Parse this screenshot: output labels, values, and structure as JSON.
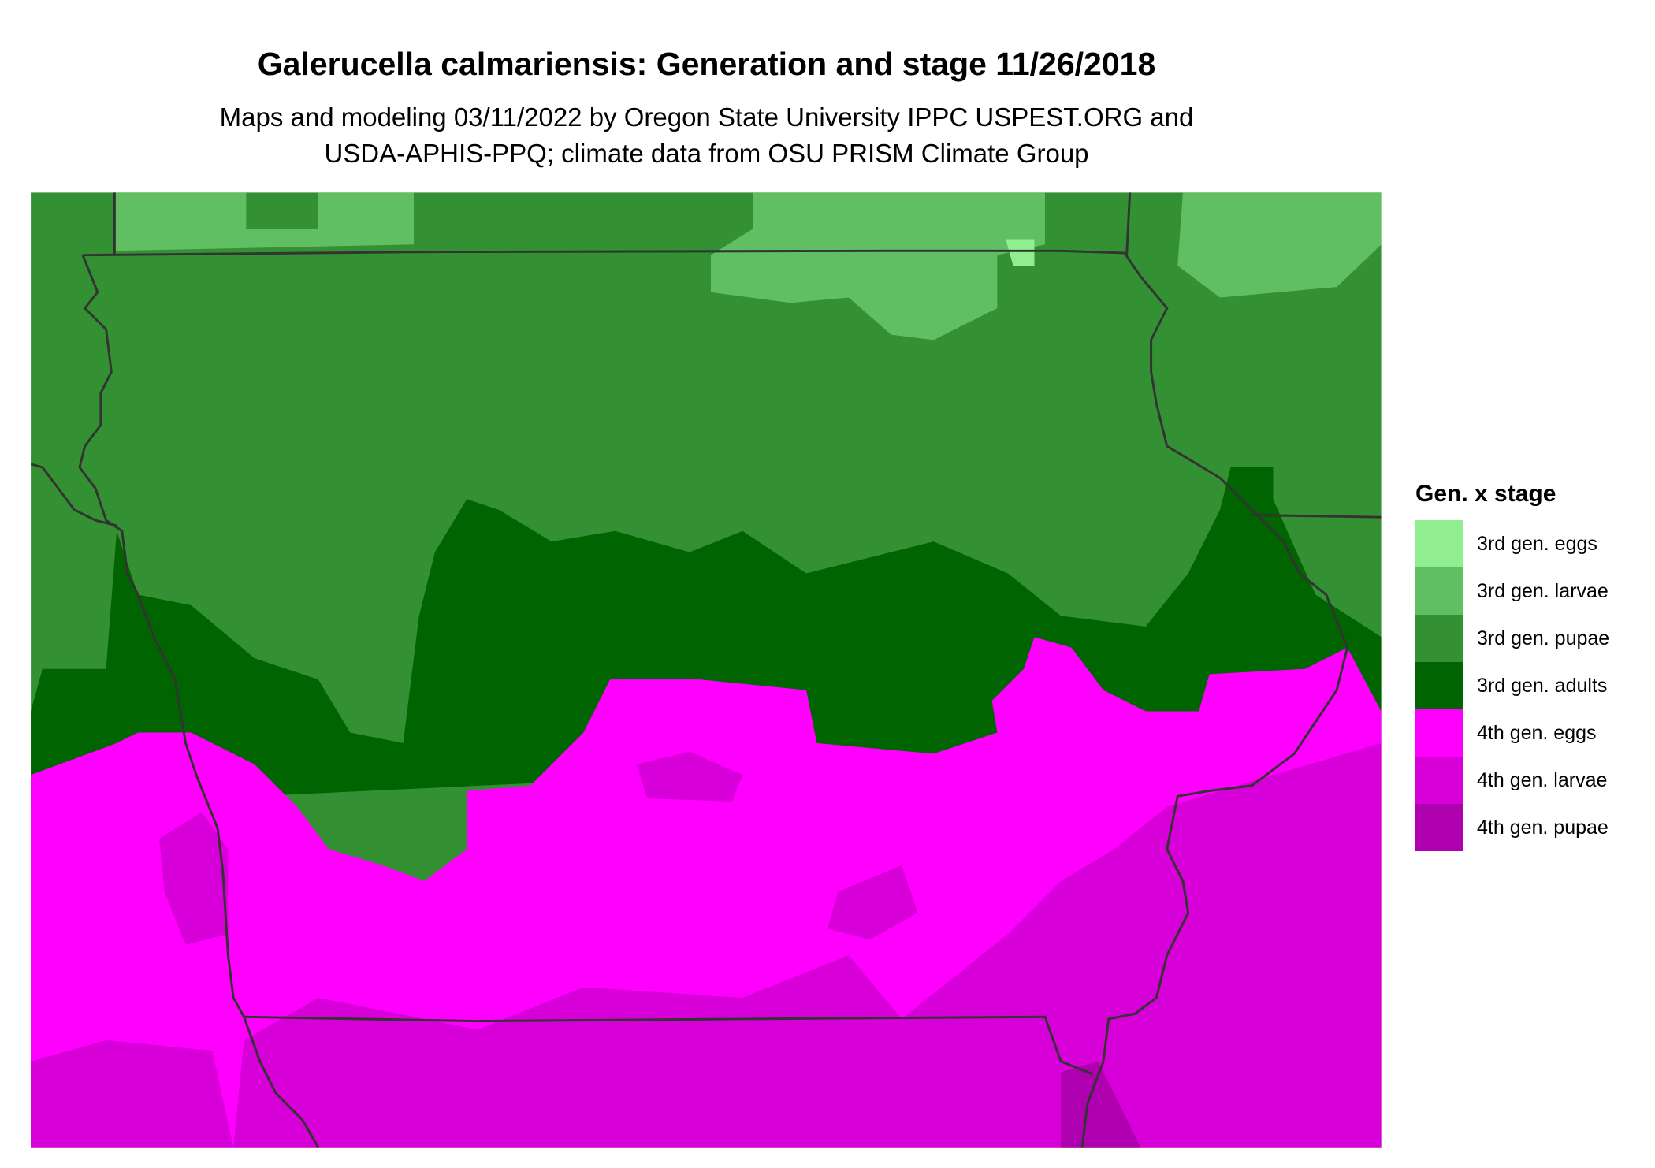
{
  "title": "Galerucella calmariensis: Generation and stage 11/26/2018",
  "subtitle_line1": "Maps and modeling 03/11/2022 by Oregon State University IPPC USPEST.ORG and",
  "subtitle_line2": "USDA-APHIS-PPQ; climate data from OSU PRISM Climate Group",
  "legend": {
    "title": "Gen. x stage",
    "items": [
      {
        "label": "3rd gen. eggs",
        "color": "#90EE90"
      },
      {
        "label": "3rd gen. larvae",
        "color": "#60BF62"
      },
      {
        "label": "3rd gen. pupae",
        "color": "#339133"
      },
      {
        "label": "3rd gen. adults",
        "color": "#006400"
      },
      {
        "label": "4th gen. eggs",
        "color": "#FF00FF"
      },
      {
        "label": "4th gen. larvae",
        "color": "#D800D8"
      },
      {
        "label": "4th gen. pupae",
        "color": "#AE00AE"
      }
    ]
  },
  "border_color": "#333333"
}
